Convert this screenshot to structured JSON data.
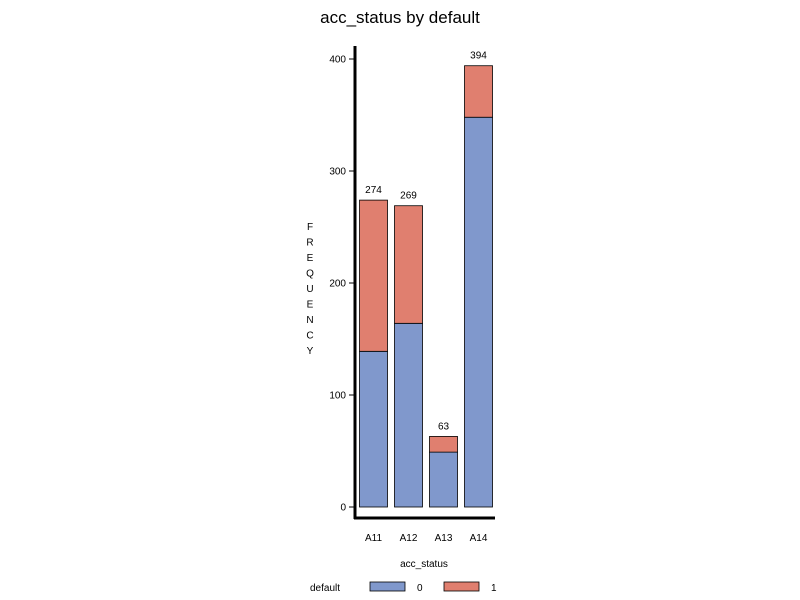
{
  "chart_data": {
    "type": "bar",
    "stacked": true,
    "title": "acc_status  by  default",
    "xlabel": "acc_status",
    "ylabel": "FREQUENCY",
    "ylim": [
      0,
      400
    ],
    "yticks": [
      "0",
      "100",
      "200",
      "300",
      "400"
    ],
    "categories": [
      "A11",
      "A12",
      "A13",
      "A14"
    ],
    "series": [
      {
        "name": "0",
        "color": "#8098cc",
        "values": [
          139,
          164,
          49,
          348
        ]
      },
      {
        "name": "1",
        "color": "#e07f6f",
        "values": [
          135,
          105,
          14,
          46
        ]
      }
    ],
    "totals": [
      "274",
      "269",
      "63",
      "394"
    ],
    "legend": {
      "title": "default",
      "position": "bottom"
    }
  }
}
